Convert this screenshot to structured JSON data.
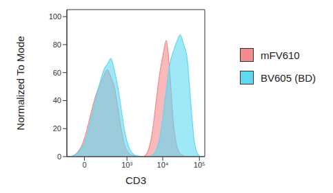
{
  "chart_data": {
    "type": "area",
    "x_label": "CD3",
    "y_label": "Normalized To Mode",
    "log": "x",
    "x": [
      -120,
      -82,
      -51,
      -27,
      -7,
      10,
      31,
      57,
      89,
      129,
      178,
      240,
      316,
      410,
      529,
      675,
      857,
      1084,
      1364,
      1712,
      2147,
      2685,
      3353,
      4191,
      5220,
      6503,
      8108,
      10088,
      12548,
      15630,
      19425,
      24135,
      30060,
      37350,
      46380,
      57740,
      71700,
      89100,
      110850,
      137700
    ],
    "series": [
      {
        "name": "mFV610",
        "color": "#f28b8b",
        "values": [
          0,
          0.5,
          2,
          5,
          10,
          18,
          28,
          38,
          46,
          52,
          58,
          62,
          57,
          50,
          36,
          20,
          8,
          3,
          1,
          0.5,
          0,
          0,
          1,
          6,
          18,
          38,
          58,
          72,
          83,
          60,
          25,
          8,
          2,
          0.5,
          0,
          0,
          0,
          0,
          0,
          0
        ]
      },
      {
        "name": "BV605 (BD)",
        "color": "#5fd8f2",
        "values": [
          0,
          0.5,
          2,
          4,
          8,
          14,
          24,
          34,
          45,
          54,
          62,
          66,
          70,
          62,
          50,
          34,
          18,
          8,
          3,
          1,
          0.5,
          0,
          0,
          0,
          1,
          4,
          12,
          28,
          48,
          66,
          75,
          82,
          87,
          80,
          70,
          40,
          12,
          2,
          0,
          0
        ]
      }
    ],
    "xlim": [
      -150,
      140000
    ],
    "xticks": [
      0,
      {
        "value": 1000,
        "label": "10³"
      },
      {
        "value": 10000,
        "label": "10⁴"
      },
      {
        "value": 100000,
        "label": "10⁵"
      }
    ],
    "ylim": [
      0,
      105
    ],
    "yticks": [
      0,
      20,
      40,
      60,
      80,
      100
    ],
    "legend": "right"
  }
}
